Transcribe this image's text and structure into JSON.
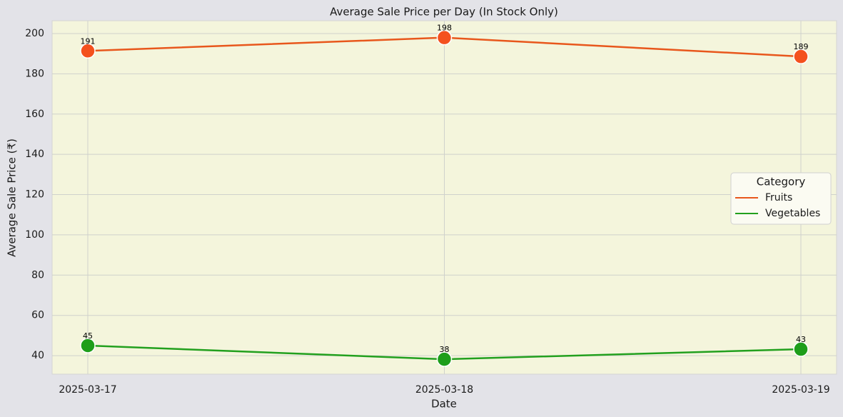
{
  "chart_data": {
    "type": "line",
    "title": "Average Sale Price per Day (In Stock Only)",
    "x_label": "Date",
    "y_label": "Average Sale Price (₹)",
    "categories": [
      "2025-03-17",
      "2025-03-18",
      "2025-03-19"
    ],
    "series": [
      {
        "name": "Fruits",
        "color": "#e8571c",
        "marker_color": "#f4511e",
        "values": [
          191.4,
          198,
          188.6
        ],
        "value_labels": [
          "191",
          "198",
          "189"
        ]
      },
      {
        "name": "Vegetables",
        "color": "#22a01e",
        "marker_color": "#1e9e1a",
        "values": [
          45,
          38.2,
          43.2
        ],
        "value_labels": [
          "45",
          "38",
          "43"
        ]
      }
    ],
    "ylim": [
      30.8,
      206.4
    ],
    "yticks": [
      40,
      60,
      80,
      100,
      120,
      140,
      160,
      180,
      200
    ],
    "grid": true,
    "legend_title": "Category",
    "legend": "center right"
  }
}
